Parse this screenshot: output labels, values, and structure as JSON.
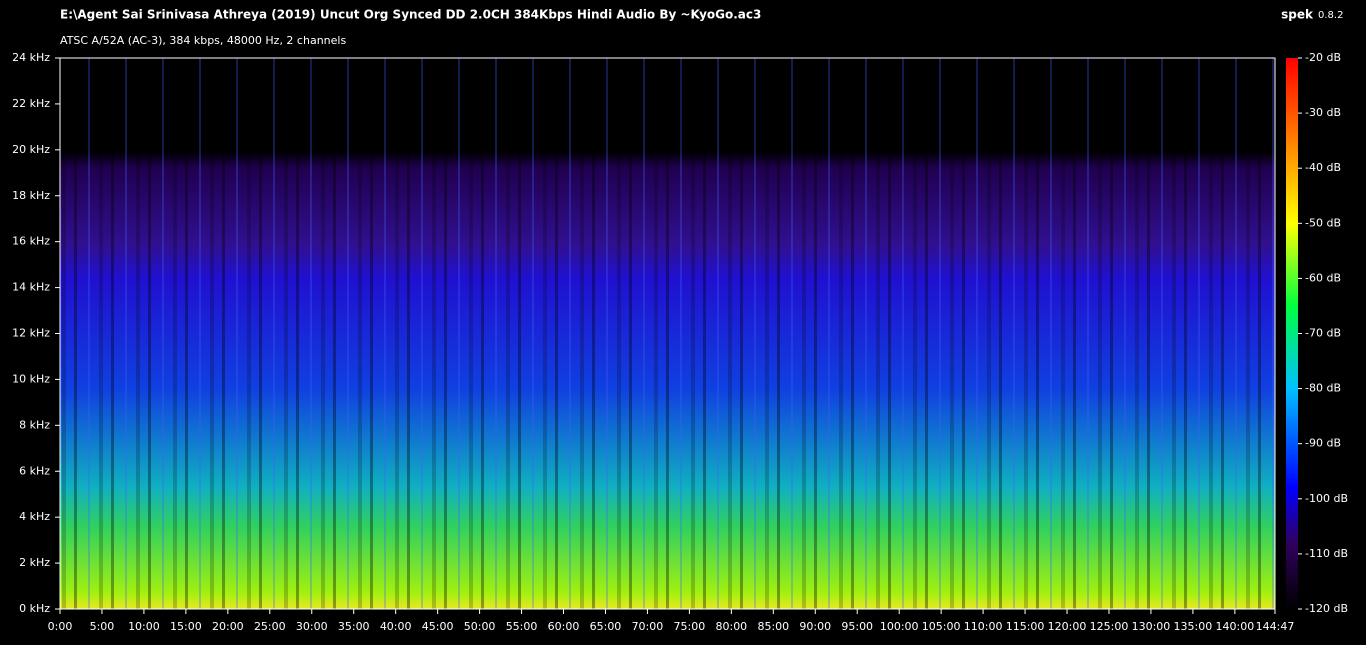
{
  "app": {
    "name": "spek",
    "version": "0.8.2"
  },
  "chart_data": {
    "type": "spectrogram",
    "title": "E:\\Agent Sai Srinivasa Athreya (2019) Uncut Org Synced DD 2.0CH 384Kbps Hindi Audio By ~KyoGo.ac3",
    "subtitle": "ATSC A/52A (AC-3), 384 kbps, 48000 Hz, 2 channels",
    "xlim": [
      0,
      8687
    ],
    "xticks": [
      {
        "value": 0,
        "label": "0:00"
      },
      {
        "value": 300,
        "label": "5:00"
      },
      {
        "value": 600,
        "label": "10:00"
      },
      {
        "value": 900,
        "label": "15:00"
      },
      {
        "value": 1200,
        "label": "20:00"
      },
      {
        "value": 1500,
        "label": "25:00"
      },
      {
        "value": 1800,
        "label": "30:00"
      },
      {
        "value": 2100,
        "label": "35:00"
      },
      {
        "value": 2400,
        "label": "40:00"
      },
      {
        "value": 2700,
        "label": "45:00"
      },
      {
        "value": 3000,
        "label": "50:00"
      },
      {
        "value": 3300,
        "label": "55:00"
      },
      {
        "value": 3600,
        "label": "60:00"
      },
      {
        "value": 3900,
        "label": "65:00"
      },
      {
        "value": 4200,
        "label": "70:00"
      },
      {
        "value": 4500,
        "label": "75:00"
      },
      {
        "value": 4800,
        "label": "80:00"
      },
      {
        "value": 5100,
        "label": "85:00"
      },
      {
        "value": 5400,
        "label": "90:00"
      },
      {
        "value": 5700,
        "label": "95:00"
      },
      {
        "value": 6000,
        "label": "100:00"
      },
      {
        "value": 6300,
        "label": "105:00"
      },
      {
        "value": 6600,
        "label": "110:00"
      },
      {
        "value": 6900,
        "label": "115:00"
      },
      {
        "value": 7200,
        "label": "120:00"
      },
      {
        "value": 7500,
        "label": "125:00"
      },
      {
        "value": 7800,
        "label": "130:00"
      },
      {
        "value": 8100,
        "label": "135:00"
      },
      {
        "value": 8400,
        "label": "140:00"
      },
      {
        "value": 8687,
        "label": "144:47"
      }
    ],
    "ylim": [
      0,
      24
    ],
    "yticks": [
      {
        "value": 0,
        "label": "0 kHz"
      },
      {
        "value": 2,
        "label": "2 kHz"
      },
      {
        "value": 4,
        "label": "4 kHz"
      },
      {
        "value": 6,
        "label": "6 kHz"
      },
      {
        "value": 8,
        "label": "8 kHz"
      },
      {
        "value": 10,
        "label": "10 kHz"
      },
      {
        "value": 12,
        "label": "12 kHz"
      },
      {
        "value": 14,
        "label": "14 kHz"
      },
      {
        "value": 16,
        "label": "16 kHz"
      },
      {
        "value": 18,
        "label": "18 kHz"
      },
      {
        "value": 20,
        "label": "20 kHz"
      },
      {
        "value": 22,
        "label": "22 kHz"
      },
      {
        "value": 24,
        "label": "24 kHz"
      }
    ],
    "zlim": [
      -120,
      -20
    ],
    "zticks": [
      {
        "value": -20,
        "label": "-20 dB"
      },
      {
        "value": -30,
        "label": "-30 dB"
      },
      {
        "value": -40,
        "label": "-40 dB"
      },
      {
        "value": -50,
        "label": "-50 dB"
      },
      {
        "value": -60,
        "label": "-60 dB"
      },
      {
        "value": -70,
        "label": "-70 dB"
      },
      {
        "value": -80,
        "label": "-80 dB"
      },
      {
        "value": -90,
        "label": "-90 dB"
      },
      {
        "value": -100,
        "label": "-100 dB"
      },
      {
        "value": -110,
        "label": "-110 dB"
      },
      {
        "value": -120,
        "label": "-120 dB"
      }
    ]
  }
}
